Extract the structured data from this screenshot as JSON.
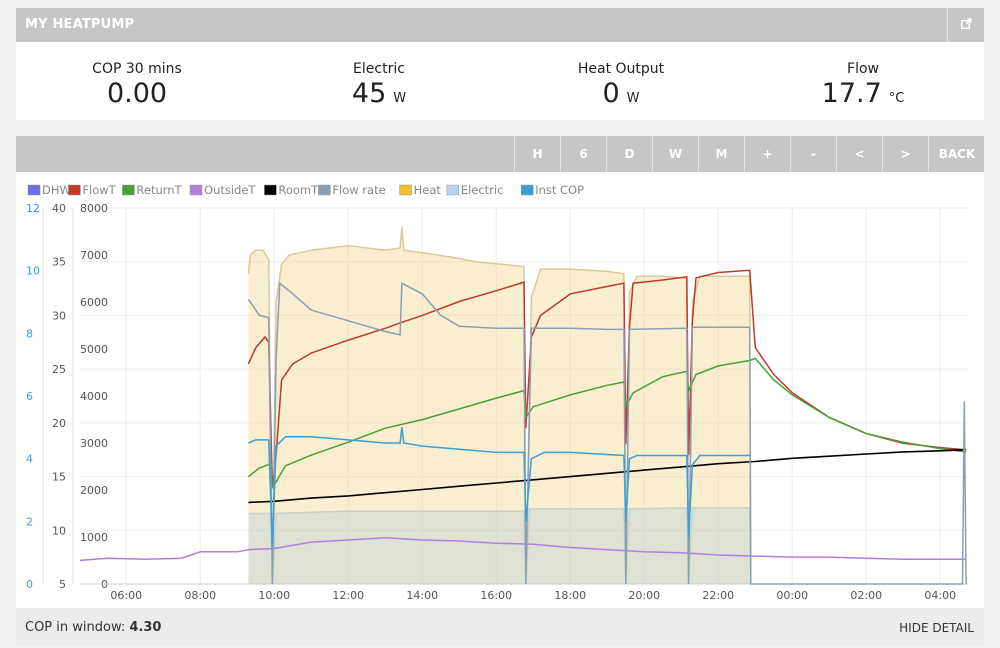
{
  "header": {
    "title": "MY HEATPUMP",
    "external_icon": "external-link-icon"
  },
  "stats": [
    {
      "label": "COP 30 mins",
      "value": "0.00",
      "unit": ""
    },
    {
      "label": "Electric",
      "value": "45",
      "unit": "W"
    },
    {
      "label": "Heat Output",
      "value": "0",
      "unit": "W"
    },
    {
      "label": "Flow",
      "value": "17.7",
      "unit": "°C"
    }
  ],
  "toolbar": {
    "buttons": [
      "H",
      "6",
      "D",
      "W",
      "M",
      "+",
      "-",
      "<",
      ">",
      "BACK"
    ]
  },
  "footer": {
    "cop_label": "COP in window:",
    "cop_value": "4.30",
    "hide_label": "HIDE DETAIL"
  },
  "colors": {
    "dhw": "#6b6fe4",
    "flowT": "#c0392b",
    "returnT": "#4a9e3a",
    "outsideT": "#b07fdc",
    "roomT": "#000000",
    "flowrate": "#8aa0b0",
    "heat": "#f3e7c4",
    "electric": "#b9d4e8",
    "instcop": "#3a9fd6"
  },
  "chart_data": {
    "type": "line",
    "legend": [
      "DHW",
      "FlowT",
      "ReturnT",
      "OutsideT",
      "RoomT",
      "Flow rate",
      "Heat",
      "Electric",
      "Inst COP"
    ],
    "legend_placement": "top-left",
    "x_unit": "hours",
    "x_range": [
      4.75,
      28.75
    ],
    "x_ticks": [
      "06:00",
      "08:00",
      "10:00",
      "12:00",
      "14:00",
      "16:00",
      "18:00",
      "20:00",
      "22:00",
      "00:00",
      "02:00",
      "04:00"
    ],
    "axes": {
      "cop": {
        "ticks": [
          0,
          2,
          4,
          6,
          8,
          10,
          12
        ],
        "range": [
          0,
          12
        ]
      },
      "temp": {
        "ticks": [
          5,
          10,
          15,
          20,
          25,
          30,
          35,
          40
        ],
        "range": [
          5,
          40
        ]
      },
      "power": {
        "ticks": [
          0,
          1000,
          2000,
          3000,
          4000,
          5000,
          6000,
          7000,
          8000
        ],
        "range": [
          0,
          8000
        ]
      }
    },
    "grid": true,
    "series": [
      {
        "name": "Heat",
        "axis": "power",
        "style": "area",
        "points": [
          [
            9.3,
            6600
          ],
          [
            9.35,
            7000
          ],
          [
            9.5,
            7100
          ],
          [
            9.7,
            7100
          ],
          [
            9.85,
            6900
          ],
          [
            9.95,
            200
          ],
          [
            10.05,
            6000
          ],
          [
            10.2,
            6800
          ],
          [
            10.4,
            7000
          ],
          [
            11,
            7100
          ],
          [
            12,
            7200
          ],
          [
            13,
            7100
          ],
          [
            13.4,
            7150
          ],
          [
            13.45,
            7600
          ],
          [
            13.5,
            7100
          ],
          [
            14,
            7050
          ],
          [
            14.8,
            6950
          ],
          [
            15.5,
            6850
          ],
          [
            16.2,
            6800
          ],
          [
            16.75,
            6750
          ],
          [
            16.8,
            0
          ],
          [
            16.95,
            6100
          ],
          [
            17.2,
            6700
          ],
          [
            18,
            6700
          ],
          [
            19,
            6650
          ],
          [
            19.45,
            6600
          ],
          [
            19.5,
            0
          ],
          [
            19.6,
            6200
          ],
          [
            19.8,
            6550
          ],
          [
            20.5,
            6550
          ],
          [
            21.15,
            6500
          ],
          [
            21.2,
            0
          ],
          [
            21.3,
            6000
          ],
          [
            21.5,
            6550
          ],
          [
            22.5,
            6550
          ],
          [
            22.85,
            6550
          ],
          [
            22.88,
            0
          ]
        ]
      },
      {
        "name": "Electric",
        "axis": "power",
        "style": "area",
        "points": [
          [
            9.3,
            1500
          ],
          [
            9.9,
            1500
          ],
          [
            9.95,
            0
          ],
          [
            10.05,
            1500
          ],
          [
            12,
            1550
          ],
          [
            14,
            1550
          ],
          [
            16.75,
            1550
          ],
          [
            16.8,
            0
          ],
          [
            16.9,
            1600
          ],
          [
            19.45,
            1600
          ],
          [
            19.5,
            0
          ],
          [
            19.6,
            1600
          ],
          [
            21.15,
            1620
          ],
          [
            21.2,
            0
          ],
          [
            21.3,
            1620
          ],
          [
            22.85,
            1620
          ],
          [
            22.88,
            0
          ]
        ]
      },
      {
        "name": "FlowT",
        "axis": "temp",
        "points": [
          [
            9.3,
            25.5
          ],
          [
            9.5,
            27
          ],
          [
            9.75,
            28
          ],
          [
            9.85,
            27.5
          ],
          [
            9.95,
            14
          ],
          [
            10.05,
            17
          ],
          [
            10.2,
            24
          ],
          [
            10.5,
            25.5
          ],
          [
            11,
            26.5
          ],
          [
            12,
            27.7
          ],
          [
            13,
            28.8
          ],
          [
            13.4,
            29.3
          ],
          [
            14,
            30
          ],
          [
            15,
            31.3
          ],
          [
            16,
            32.3
          ],
          [
            16.75,
            33.1
          ],
          [
            16.8,
            19.5
          ],
          [
            16.95,
            28
          ],
          [
            17.2,
            30
          ],
          [
            18,
            32
          ],
          [
            19,
            32.7
          ],
          [
            19.45,
            33
          ],
          [
            19.5,
            18
          ],
          [
            19.6,
            29
          ],
          [
            19.7,
            33
          ],
          [
            20.5,
            33.3
          ],
          [
            21.15,
            33.6
          ],
          [
            21.2,
            17
          ],
          [
            21.3,
            29.5
          ],
          [
            21.4,
            33.5
          ],
          [
            22,
            34
          ],
          [
            22.85,
            34.2
          ],
          [
            23,
            27
          ],
          [
            23.5,
            24.5
          ],
          [
            24,
            22.8
          ],
          [
            25,
            20.5
          ],
          [
            26,
            19
          ],
          [
            27,
            18.1
          ],
          [
            28,
            17.7
          ],
          [
            28.7,
            17.5
          ]
        ]
      },
      {
        "name": "ReturnT",
        "axis": "temp",
        "points": [
          [
            9.3,
            15
          ],
          [
            9.6,
            15.8
          ],
          [
            9.9,
            16.2
          ],
          [
            9.95,
            14
          ],
          [
            10.05,
            14.5
          ],
          [
            10.3,
            16
          ],
          [
            11,
            17
          ],
          [
            12,
            18.2
          ],
          [
            13,
            19.5
          ],
          [
            14,
            20.3
          ],
          [
            15,
            21.3
          ],
          [
            16,
            22.3
          ],
          [
            16.75,
            23
          ],
          [
            16.8,
            20.5
          ],
          [
            17,
            21.5
          ],
          [
            18,
            22.6
          ],
          [
            19,
            23.5
          ],
          [
            19.45,
            23.8
          ],
          [
            19.5,
            21.5
          ],
          [
            19.7,
            22.8
          ],
          [
            20.5,
            24.3
          ],
          [
            21.15,
            24.8
          ],
          [
            21.2,
            23
          ],
          [
            21.4,
            24.5
          ],
          [
            22,
            25.3
          ],
          [
            22.85,
            25.8
          ],
          [
            23,
            26
          ],
          [
            23.5,
            24
          ],
          [
            24,
            22.6
          ],
          [
            25,
            20.5
          ],
          [
            26,
            19
          ],
          [
            27,
            18.2
          ],
          [
            28,
            17.6
          ],
          [
            28.7,
            17.3
          ]
        ]
      },
      {
        "name": "OutsideT",
        "axis": "temp",
        "points": [
          [
            4.75,
            7.2
          ],
          [
            5.5,
            7.4
          ],
          [
            6.5,
            7.3
          ],
          [
            7.5,
            7.4
          ],
          [
            8,
            8
          ],
          [
            9,
            8
          ],
          [
            9.3,
            8.2
          ],
          [
            10,
            8.3
          ],
          [
            11,
            8.9
          ],
          [
            12,
            9.1
          ],
          [
            13,
            9.3
          ],
          [
            14,
            9.1
          ],
          [
            15,
            9
          ],
          [
            16,
            8.8
          ],
          [
            17,
            8.7
          ],
          [
            18,
            8.4
          ],
          [
            19,
            8.2
          ],
          [
            20,
            8
          ],
          [
            21,
            7.9
          ],
          [
            22,
            7.7
          ],
          [
            23,
            7.6
          ],
          [
            24,
            7.5
          ],
          [
            25,
            7.5
          ],
          [
            26,
            7.4
          ],
          [
            27,
            7.3
          ],
          [
            28,
            7.3
          ],
          [
            28.7,
            7.3
          ]
        ]
      },
      {
        "name": "RoomT",
        "axis": "temp",
        "points": [
          [
            9.3,
            12.6
          ],
          [
            10,
            12.7
          ],
          [
            11,
            13
          ],
          [
            12,
            13.2
          ],
          [
            13,
            13.5
          ],
          [
            14,
            13.8
          ],
          [
            15,
            14.1
          ],
          [
            16,
            14.4
          ],
          [
            17,
            14.7
          ],
          [
            18,
            15
          ],
          [
            19,
            15.3
          ],
          [
            20,
            15.6
          ],
          [
            21,
            15.9
          ],
          [
            22,
            16.2
          ],
          [
            23,
            16.4
          ],
          [
            24,
            16.7
          ],
          [
            25,
            16.9
          ],
          [
            26,
            17.1
          ],
          [
            27,
            17.3
          ],
          [
            28,
            17.4
          ],
          [
            28.7,
            17.5
          ]
        ]
      },
      {
        "name": "Flow rate",
        "axis": "temp",
        "points": [
          [
            9.3,
            31.5
          ],
          [
            9.6,
            30
          ],
          [
            9.85,
            29.8
          ],
          [
            9.95,
            5
          ],
          [
            10.05,
            26
          ],
          [
            10.15,
            33
          ],
          [
            10.5,
            32
          ],
          [
            11,
            30.5
          ],
          [
            12,
            29.5
          ],
          [
            13,
            28.5
          ],
          [
            13.4,
            28.2
          ],
          [
            13.45,
            33
          ],
          [
            14,
            32
          ],
          [
            14.5,
            30
          ],
          [
            15,
            29
          ],
          [
            16,
            28.8
          ],
          [
            16.75,
            28.8
          ],
          [
            16.8,
            5
          ],
          [
            16.95,
            28.8
          ],
          [
            18,
            28.8
          ],
          [
            19,
            28.7
          ],
          [
            19.45,
            28.7
          ],
          [
            19.5,
            5
          ],
          [
            19.6,
            28.7
          ],
          [
            21.15,
            28.8
          ],
          [
            21.2,
            5
          ],
          [
            21.3,
            28.9
          ],
          [
            22.85,
            28.9
          ],
          [
            22.88,
            5
          ],
          [
            25,
            5
          ],
          [
            28.6,
            5
          ],
          [
            28.65,
            22
          ],
          [
            28.7,
            5
          ]
        ]
      },
      {
        "name": "Inst COP",
        "axis": "cop",
        "points": [
          [
            9.3,
            4.5
          ],
          [
            9.5,
            4.6
          ],
          [
            9.85,
            4.6
          ],
          [
            9.95,
            1.2
          ],
          [
            10.05,
            4.4
          ],
          [
            10.3,
            4.7
          ],
          [
            11,
            4.7
          ],
          [
            12,
            4.6
          ],
          [
            13,
            4.5
          ],
          [
            13.4,
            4.5
          ],
          [
            13.45,
            5
          ],
          [
            13.5,
            4.5
          ],
          [
            14,
            4.4
          ],
          [
            15,
            4.3
          ],
          [
            16,
            4.2
          ],
          [
            16.75,
            4.2
          ],
          [
            16.8,
            2
          ],
          [
            16.95,
            4
          ],
          [
            17.3,
            4.2
          ],
          [
            18,
            4.2
          ],
          [
            19.45,
            4.1
          ],
          [
            19.5,
            2
          ],
          [
            19.6,
            4
          ],
          [
            19.8,
            4.1
          ],
          [
            21.15,
            4.1
          ],
          [
            21.2,
            1.5
          ],
          [
            21.3,
            3.8
          ],
          [
            21.5,
            4.1
          ],
          [
            22.85,
            4.1
          ]
        ]
      }
    ]
  }
}
